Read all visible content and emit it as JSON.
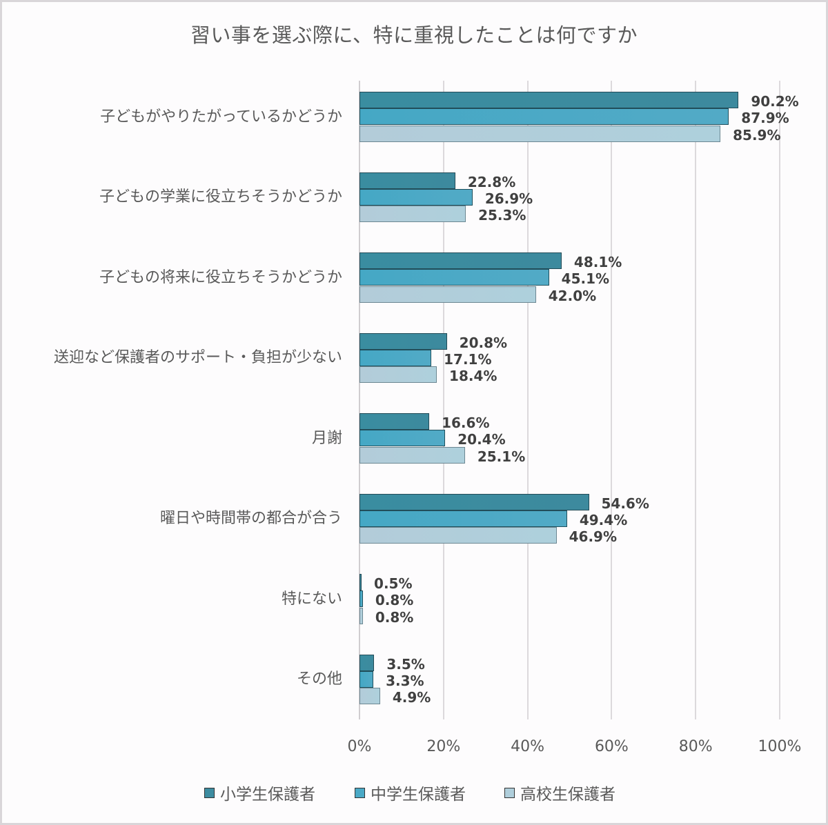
{
  "chart_data": {
    "type": "bar",
    "orientation": "horizontal",
    "title": "習い事を選ぶ際に、特に重視したことは何ですか",
    "xlabel": "",
    "ylabel": "",
    "xlim": [
      0,
      100
    ],
    "x_ticks": [
      "0%",
      "20%",
      "40%",
      "60%",
      "80%",
      "100%"
    ],
    "grid": true,
    "legend_position": "bottom",
    "categories": [
      "子どもがやりたがっているかどうか",
      "子どもの学業に役立ちそうかどうか",
      "子どもの将来に役立ちそうかどうか",
      "送迎など保護者のサポート・負担が少ない",
      "月謝",
      "曜日や時間帯の都合が合う",
      "特にない",
      "その他"
    ],
    "series": [
      {
        "name": "小学生保護者",
        "color": "#3d8ca0",
        "values": [
          90.2,
          22.8,
          48.1,
          20.8,
          16.6,
          54.6,
          0.5,
          3.5
        ],
        "labels": [
          "90.2%",
          "22.8%",
          "48.1%",
          "20.8%",
          "16.6%",
          "54.6%",
          "0.5%",
          "3.5%"
        ]
      },
      {
        "name": "中学生保護者",
        "color": "#4aa9c6",
        "values": [
          87.9,
          26.9,
          45.1,
          17.1,
          20.4,
          49.4,
          0.8,
          3.3
        ],
        "labels": [
          "87.9%",
          "26.9%",
          "45.1%",
          "17.1%",
          "20.4%",
          "49.4%",
          "0.8%",
          "3.3%"
        ]
      },
      {
        "name": "高校生保護者",
        "color": "#afcedb",
        "values": [
          85.9,
          25.3,
          42.0,
          18.4,
          25.1,
          46.9,
          0.8,
          4.9
        ],
        "labels": [
          "85.9%",
          "25.3%",
          "42.0%",
          "18.4%",
          "25.1%",
          "46.9%",
          "0.8%",
          "4.9%"
        ]
      }
    ]
  }
}
